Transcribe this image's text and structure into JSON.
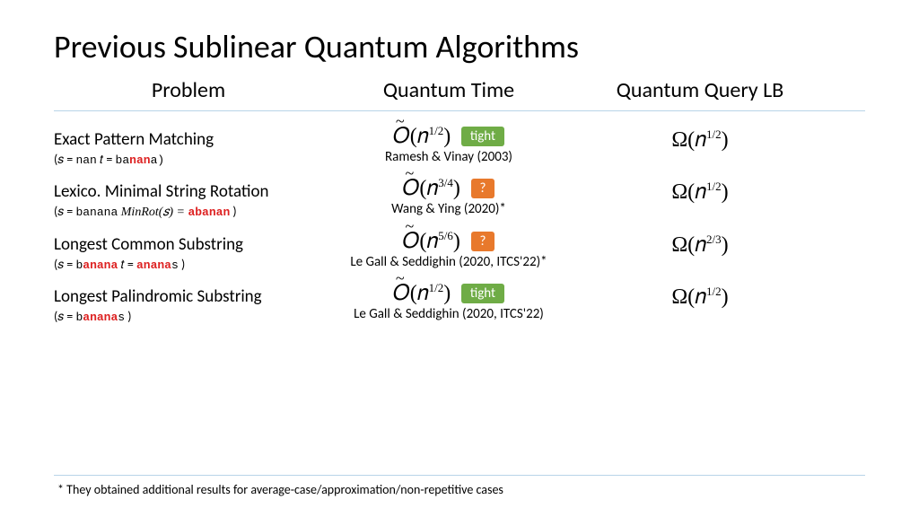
{
  "title": "Previous Sublinear Quantum Algorithms",
  "headers": {
    "problem": "Problem",
    "time": "Quantum Time",
    "lb": "Quantum Query LB"
  },
  "rows": [
    {
      "name": "Exact Pattern Matching",
      "example_prefix_s": "(𝑠 = ",
      "example_s_mono": "nan",
      "example_mid": "  𝑡 = ",
      "example_t_pre": "ba",
      "example_t_red": "nan",
      "example_t_post": "a)",
      "time_exp": "1/2",
      "badge": "tight",
      "badge_class": "badge-tight",
      "citation": "Ramesh & Vinay (2003)",
      "lb_exp": "1/2"
    },
    {
      "name": "Lexico. Minimal String Rotation",
      "example_prefix_s": "(𝑠 = ",
      "example_s_mono": "banana",
      "example_mid": "  MinRot(𝑠) = ",
      "example_t_pre": "",
      "example_t_red": "abanan",
      "example_t_post": " )",
      "time_exp": "3/4",
      "badge": "?",
      "badge_class": "badge-q",
      "citation": "Wang & Ying (2020)*",
      "lb_exp": "1/2"
    },
    {
      "name": "Longest Common Substring",
      "example_prefix_s": "(𝑠 = ",
      "example_s_mono_pre": "b",
      "example_s_mono_red": "anana",
      "example_mid": "  𝑡 = ",
      "example_t_pre": "",
      "example_t_red": "anana",
      "example_t_post_mono": "s",
      "example_t_post": " )",
      "time_exp": "5/6",
      "badge": "?",
      "badge_class": "badge-q",
      "citation": "Le Gall & Seddighin (2020, ITCS'22)*",
      "lb_exp": "2/3"
    },
    {
      "name": "Longest Palindromic Substring",
      "example_prefix_s": "(𝑠 = ",
      "example_s_mono_pre": "b",
      "example_s_mono_red": "anana",
      "example_s_mono_post": "s",
      "example_t_post": " )",
      "time_exp": "1/2",
      "badge": "tight",
      "badge_class": "badge-tight",
      "citation": "Le Gall & Seddighin (2020, ITCS'22)",
      "lb_exp": "1/2"
    }
  ],
  "footnote": "* They obtained additional results for average-case/approximation/non-repetitive cases",
  "colors": {
    "tight": "#6fac46",
    "question": "#e8792c",
    "red": "#d22",
    "divider": "#b8d4e8"
  }
}
